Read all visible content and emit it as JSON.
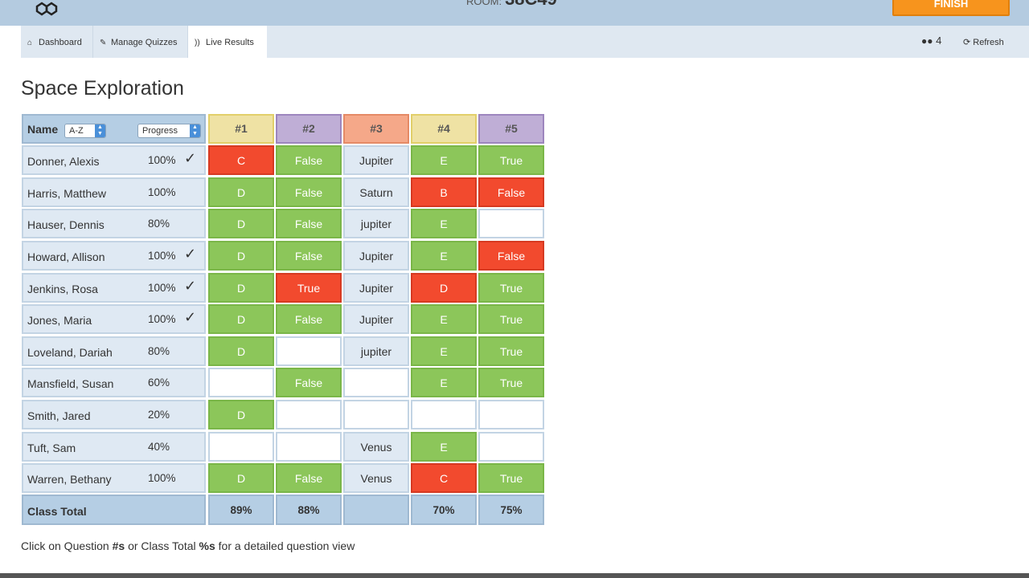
{
  "header": {
    "room_label": "ROOM:",
    "room_code": "38C49",
    "finish_label": "FINISH"
  },
  "nav": {
    "tabs": [
      {
        "label": "Dashboard",
        "icon": "home-icon"
      },
      {
        "label": "Manage Quizzes",
        "icon": "wrench-icon"
      },
      {
        "label": "Live Results",
        "icon": "live-icon",
        "active": true
      }
    ],
    "student_count": "4",
    "refresh_label": "Refresh"
  },
  "page": {
    "title": "Space Exploration"
  },
  "table": {
    "name_header": "Name",
    "sort_select": "A-Z",
    "progress_select": "Progress",
    "questions": [
      {
        "label": "#1",
        "color": "#efe2a4",
        "border": "#e2cf6a"
      },
      {
        "label": "#2",
        "color": "#bfaed6",
        "border": "#9d86be"
      },
      {
        "label": "#3",
        "color": "#f5a889",
        "border": "#e58a66"
      },
      {
        "label": "#4",
        "color": "#efe2a4",
        "border": "#e2cf6a"
      },
      {
        "label": "#5",
        "color": "#bfaed6",
        "border": "#9d86be"
      }
    ],
    "students": [
      {
        "name": "Donner, Alexis",
        "progress": "100%",
        "done": true,
        "answers": [
          {
            "text": "C",
            "status": "wrong"
          },
          {
            "text": "False",
            "status": "correct"
          },
          {
            "text": "Jupiter",
            "status": "neutral"
          },
          {
            "text": "E",
            "status": "correct"
          },
          {
            "text": "True",
            "status": "correct"
          }
        ]
      },
      {
        "name": "Harris, Matthew",
        "progress": "100%",
        "done": false,
        "answers": [
          {
            "text": "D",
            "status": "correct"
          },
          {
            "text": "False",
            "status": "correct"
          },
          {
            "text": "Saturn",
            "status": "neutral"
          },
          {
            "text": "B",
            "status": "wrong"
          },
          {
            "text": "False",
            "status": "wrong"
          }
        ]
      },
      {
        "name": "Hauser, Dennis",
        "progress": "80%",
        "done": false,
        "answers": [
          {
            "text": "D",
            "status": "correct"
          },
          {
            "text": "False",
            "status": "correct"
          },
          {
            "text": "jupiter",
            "status": "neutral"
          },
          {
            "text": "E",
            "status": "correct"
          },
          {
            "text": "",
            "status": "empty"
          }
        ]
      },
      {
        "name": "Howard, Allison",
        "progress": "100%",
        "done": true,
        "answers": [
          {
            "text": "D",
            "status": "correct"
          },
          {
            "text": "False",
            "status": "correct"
          },
          {
            "text": "Jupiter",
            "status": "neutral"
          },
          {
            "text": "E",
            "status": "correct"
          },
          {
            "text": "False",
            "status": "wrong"
          }
        ]
      },
      {
        "name": "Jenkins, Rosa",
        "progress": "100%",
        "done": true,
        "answers": [
          {
            "text": "D",
            "status": "correct"
          },
          {
            "text": "True",
            "status": "wrong"
          },
          {
            "text": "Jupiter",
            "status": "neutral"
          },
          {
            "text": "D",
            "status": "wrong"
          },
          {
            "text": "True",
            "status": "correct"
          }
        ]
      },
      {
        "name": "Jones, Maria",
        "progress": "100%",
        "done": true,
        "answers": [
          {
            "text": "D",
            "status": "correct"
          },
          {
            "text": "False",
            "status": "correct"
          },
          {
            "text": "Jupiter",
            "status": "neutral"
          },
          {
            "text": "E",
            "status": "correct"
          },
          {
            "text": "True",
            "status": "correct"
          }
        ]
      },
      {
        "name": "Loveland, Dariah",
        "progress": "80%",
        "done": false,
        "answers": [
          {
            "text": "D",
            "status": "correct"
          },
          {
            "text": "",
            "status": "empty"
          },
          {
            "text": "jupiter",
            "status": "neutral"
          },
          {
            "text": "E",
            "status": "correct"
          },
          {
            "text": "True",
            "status": "correct"
          }
        ]
      },
      {
        "name": "Mansfield, Susan",
        "progress": "60%",
        "done": false,
        "answers": [
          {
            "text": "",
            "status": "empty"
          },
          {
            "text": "False",
            "status": "correct"
          },
          {
            "text": "",
            "status": "empty"
          },
          {
            "text": "E",
            "status": "correct"
          },
          {
            "text": "True",
            "status": "correct"
          }
        ]
      },
      {
        "name": "Smith, Jared",
        "progress": "20%",
        "done": false,
        "answers": [
          {
            "text": "D",
            "status": "correct"
          },
          {
            "text": "",
            "status": "empty"
          },
          {
            "text": "",
            "status": "empty"
          },
          {
            "text": "",
            "status": "empty"
          },
          {
            "text": "",
            "status": "empty"
          }
        ]
      },
      {
        "name": "Tuft, Sam",
        "progress": "40%",
        "done": false,
        "answers": [
          {
            "text": "",
            "status": "empty"
          },
          {
            "text": "",
            "status": "empty"
          },
          {
            "text": "Venus",
            "status": "neutral"
          },
          {
            "text": "E",
            "status": "correct"
          },
          {
            "text": "",
            "status": "empty"
          }
        ]
      },
      {
        "name": "Warren, Bethany",
        "progress": "100%",
        "done": false,
        "answers": [
          {
            "text": "D",
            "status": "correct"
          },
          {
            "text": "False",
            "status": "correct"
          },
          {
            "text": "Venus",
            "status": "neutral"
          },
          {
            "text": "C",
            "status": "wrong"
          },
          {
            "text": "True",
            "status": "correct"
          }
        ]
      }
    ],
    "check_mark": "✓",
    "class_total_label": "Class Total",
    "class_totals": [
      "89%",
      "88%",
      "",
      "70%",
      "75%"
    ]
  },
  "footer": {
    "note_1": "Click on Question ",
    "note_bold_1": "#s",
    "note_2": " or Class Total ",
    "note_bold_2": "%s",
    "note_3": " for a detailed question view"
  },
  "colors": {
    "correct": "#8cc65a",
    "wrong": "#f24a2e",
    "header_blue": "#b5cee4",
    "finish_orange": "#f7941d"
  }
}
